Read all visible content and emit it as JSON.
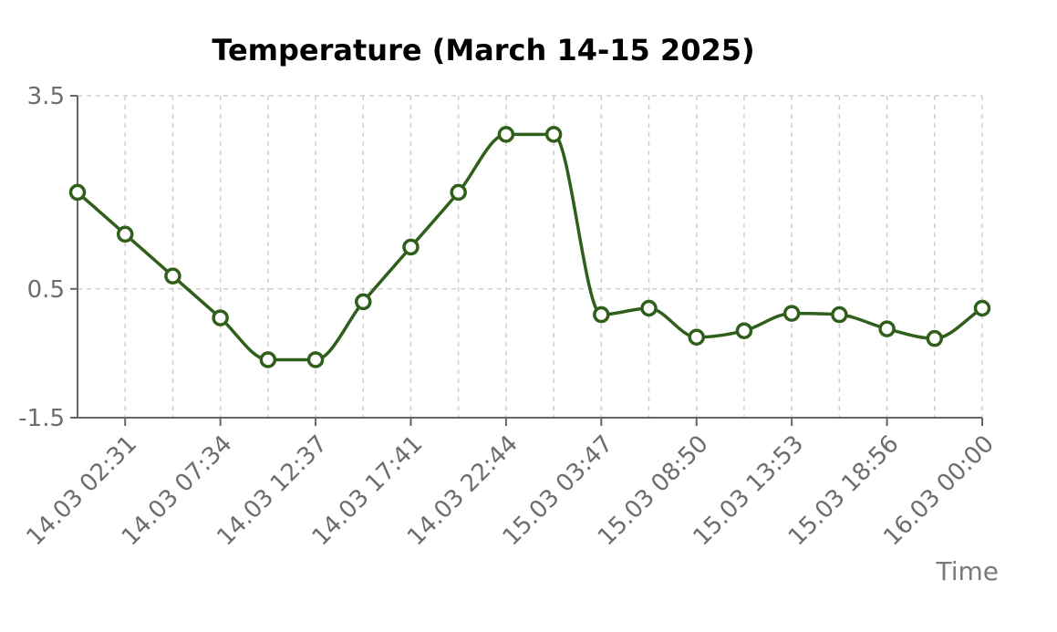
{
  "chart_data": {
    "type": "line",
    "title": "Temperature (March 14-15 2025)",
    "xlabel": "Time",
    "ylabel": "",
    "ylim": [
      -1.5,
      3.5
    ],
    "y_ticks": [
      "3.5",
      "0.5",
      "-1.5"
    ],
    "y_tick_values": [
      3.5,
      0.5,
      -1.5
    ],
    "x_tick_labels": [
      "14.03 02:31",
      "14.03 07:34",
      "14.03 12:37",
      "14.03 17:41",
      "14.03 22:44",
      "15.03 03:47",
      "15.03 08:50",
      "15.03 13:53",
      "15.03 18:56",
      "16.03 00:00"
    ],
    "grid": true,
    "color": "#2f5f1a",
    "series": [
      {
        "values": [
          2.0,
          1.35,
          0.7,
          0.05,
          -0.6,
          -0.6,
          0.3,
          1.15,
          2.0,
          2.9,
          2.9,
          0.1,
          0.2,
          -0.25,
          -0.15,
          0.12,
          0.1,
          -0.12,
          -0.27,
          0.2
        ]
      }
    ]
  }
}
